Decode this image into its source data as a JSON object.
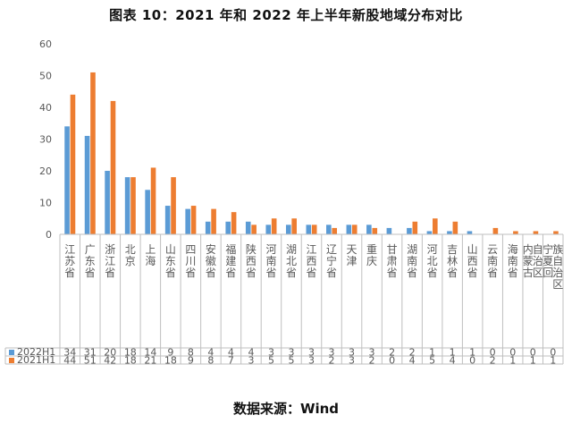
{
  "title": "图表 10：2021 年和 2022 年上半年新股地域分布对比",
  "source": "数据来源：Wind",
  "colors": {
    "series_2022": "#5B9BD5",
    "series_2021": "#ED7D31",
    "axis": "#bfbfbf",
    "grid": "#d9d9d9",
    "text": "#595959"
  },
  "chart_data": {
    "type": "bar",
    "title": "图表 10：2021 年和 2022 年上半年新股地域分布对比",
    "xlabel": "",
    "ylabel": "",
    "ylim": [
      0,
      60
    ],
    "yticks": [
      "0",
      "10",
      "20",
      "30",
      "40",
      "50",
      "60"
    ],
    "grid": false,
    "legend": "bottom-left (data table)",
    "categories": [
      "江苏省",
      "广东省",
      "浙江省",
      "北京",
      "上海",
      "山东省",
      "四川省",
      "安徽省",
      "福建省",
      "陕西省",
      "河南省",
      "湖北省",
      "江西省",
      "辽宁省",
      "天津",
      "重庆",
      "甘肃省",
      "湖南省",
      "河北省",
      "吉林省",
      "山西省",
      "云南省",
      "海南省",
      "内蒙古自治区",
      "宁夏回族自治区"
    ],
    "series": [
      {
        "name": "2022H1",
        "values": [
          34,
          31,
          20,
          18,
          14,
          9,
          8,
          4,
          4,
          4,
          3,
          3,
          3,
          3,
          3,
          3,
          2,
          2,
          1,
          1,
          1,
          0,
          0,
          0,
          0
        ]
      },
      {
        "name": "2021H1",
        "values": [
          44,
          51,
          42,
          18,
          21,
          18,
          9,
          8,
          7,
          3,
          5,
          5,
          3,
          2,
          3,
          2,
          0,
          4,
          5,
          4,
          0,
          2,
          1,
          1,
          1
        ]
      }
    ]
  }
}
